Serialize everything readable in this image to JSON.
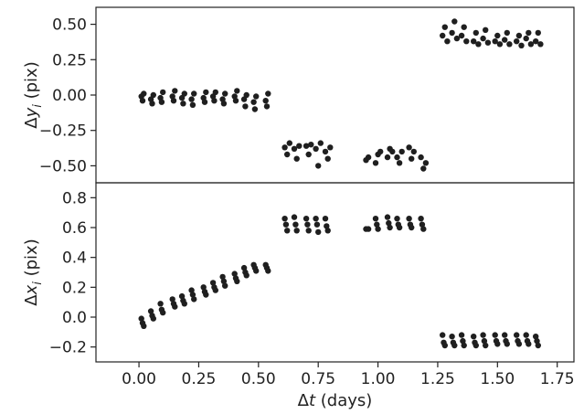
{
  "chart_data": [
    {
      "type": "scatter",
      "panel": "top",
      "ylabel": "Δy_i (pix)",
      "ylabel_parts": {
        "base": "Δ",
        "var": "y",
        "sub": "i",
        "unit": "(pix)"
      },
      "xlabel": "",
      "ylim": [
        -0.62,
        0.62
      ],
      "xlim": [
        -0.18,
        1.82
      ],
      "yticks": [
        0.5,
        0.25,
        0.0,
        -0.25,
        -0.5
      ],
      "ytick_labels": [
        "0.50",
        "0.25",
        "0.00",
        "−0.25",
        "−0.50"
      ],
      "grid": false,
      "marker_color": "#1f1f1f",
      "series": [
        {
          "x": [
            0.01,
            0.015,
            0.02,
            0.05,
            0.055,
            0.06,
            0.09,
            0.095,
            0.1,
            0.14,
            0.145,
            0.15,
            0.18,
            0.185,
            0.19,
            0.22,
            0.225,
            0.23,
            0.27,
            0.275,
            0.28,
            0.31,
            0.315,
            0.32,
            0.35,
            0.355,
            0.36,
            0.4,
            0.405,
            0.41,
            0.44,
            0.445,
            0.45,
            0.48,
            0.485,
            0.49,
            0.53,
            0.535,
            0.54,
            0.61,
            0.62,
            0.63,
            0.65,
            0.66,
            0.67,
            0.7,
            0.71,
            0.72,
            0.74,
            0.75,
            0.76,
            0.78,
            0.79,
            0.8,
            0.95,
            0.96,
            0.99,
            1.0,
            1.01,
            1.04,
            1.05,
            1.06,
            1.08,
            1.09,
            1.1,
            1.13,
            1.14,
            1.15,
            1.18,
            1.19,
            1.2,
            1.27,
            1.28,
            1.29,
            1.31,
            1.32,
            1.33,
            1.35,
            1.36,
            1.37,
            1.4,
            1.41,
            1.42,
            1.44,
            1.45,
            1.46,
            1.49,
            1.5,
            1.51,
            1.53,
            1.54,
            1.55,
            1.58,
            1.59,
            1.6,
            1.62,
            1.63,
            1.64,
            1.66,
            1.67,
            1.68
          ],
          "y": [
            -0.01,
            -0.04,
            0.01,
            -0.03,
            -0.06,
            0.0,
            -0.02,
            -0.05,
            0.02,
            -0.01,
            -0.04,
            0.03,
            -0.02,
            -0.06,
            0.01,
            -0.03,
            -0.07,
            0.01,
            -0.02,
            -0.05,
            0.02,
            -0.01,
            -0.04,
            0.02,
            -0.03,
            -0.06,
            0.01,
            -0.01,
            -0.04,
            0.03,
            -0.03,
            -0.08,
            0.0,
            -0.05,
            -0.1,
            -0.01,
            -0.04,
            -0.08,
            0.01,
            -0.37,
            -0.42,
            -0.34,
            -0.38,
            -0.45,
            -0.36,
            -0.36,
            -0.42,
            -0.35,
            -0.38,
            -0.5,
            -0.34,
            -0.4,
            -0.45,
            -0.37,
            -0.46,
            -0.44,
            -0.48,
            -0.42,
            -0.4,
            -0.44,
            -0.38,
            -0.4,
            -0.44,
            -0.48,
            -0.4,
            -0.37,
            -0.45,
            -0.4,
            -0.44,
            -0.52,
            -0.48,
            0.42,
            0.48,
            0.38,
            0.44,
            0.52,
            0.4,
            0.42,
            0.48,
            0.38,
            0.38,
            0.44,
            0.36,
            0.4,
            0.46,
            0.37,
            0.38,
            0.42,
            0.36,
            0.39,
            0.44,
            0.36,
            0.38,
            0.42,
            0.35,
            0.4,
            0.44,
            0.36,
            0.38,
            0.44,
            0.36
          ]
        }
      ]
    },
    {
      "type": "scatter",
      "panel": "bottom",
      "ylabel": "Δx_i (pix)",
      "ylabel_parts": {
        "base": "Δ",
        "var": "x",
        "sub": "i",
        "unit": "(pix)"
      },
      "xlabel": "Δt (days)",
      "xlabel_parts": {
        "base": "Δ",
        "var": "t",
        "unit": "(days)"
      },
      "ylim": [
        -0.3,
        0.9
      ],
      "xlim": [
        -0.18,
        1.82
      ],
      "yticks": [
        0.8,
        0.6,
        0.4,
        0.2,
        0.0,
        -0.2
      ],
      "ytick_labels": [
        "0.8",
        "0.6",
        "0.4",
        "0.2",
        "0.0",
        "−0.2"
      ],
      "xticks": [
        0.0,
        0.25,
        0.5,
        0.75,
        1.0,
        1.25,
        1.5,
        1.75
      ],
      "xtick_labels": [
        "0.00",
        "0.25",
        "0.50",
        "0.75",
        "1.00",
        "1.25",
        "1.50",
        "1.75"
      ],
      "grid": false,
      "marker_color": "#1f1f1f",
      "series": [
        {
          "x": [
            0.01,
            0.015,
            0.02,
            0.05,
            0.055,
            0.06,
            0.09,
            0.095,
            0.1,
            0.14,
            0.145,
            0.15,
            0.18,
            0.185,
            0.19,
            0.22,
            0.225,
            0.23,
            0.27,
            0.275,
            0.28,
            0.31,
            0.315,
            0.32,
            0.35,
            0.355,
            0.36,
            0.4,
            0.405,
            0.41,
            0.44,
            0.445,
            0.45,
            0.48,
            0.485,
            0.49,
            0.53,
            0.535,
            0.54,
            0.61,
            0.615,
            0.62,
            0.65,
            0.655,
            0.66,
            0.7,
            0.705,
            0.71,
            0.74,
            0.745,
            0.75,
            0.78,
            0.785,
            0.79,
            0.95,
            0.96,
            0.99,
            0.995,
            1.0,
            1.04,
            1.045,
            1.05,
            1.08,
            1.085,
            1.09,
            1.13,
            1.135,
            1.14,
            1.18,
            1.185,
            1.19,
            1.27,
            1.275,
            1.28,
            1.31,
            1.315,
            1.32,
            1.35,
            1.355,
            1.36,
            1.4,
            1.405,
            1.41,
            1.44,
            1.445,
            1.45,
            1.49,
            1.495,
            1.5,
            1.53,
            1.535,
            1.54,
            1.58,
            1.585,
            1.59,
            1.62,
            1.625,
            1.63,
            1.66,
            1.665,
            1.67
          ],
          "y": [
            -0.01,
            -0.04,
            -0.06,
            0.04,
            0.01,
            -0.01,
            0.09,
            0.05,
            0.03,
            0.12,
            0.09,
            0.07,
            0.14,
            0.11,
            0.09,
            0.18,
            0.15,
            0.12,
            0.2,
            0.17,
            0.15,
            0.23,
            0.2,
            0.18,
            0.27,
            0.24,
            0.21,
            0.29,
            0.26,
            0.24,
            0.33,
            0.3,
            0.28,
            0.35,
            0.33,
            0.31,
            0.35,
            0.33,
            0.31,
            0.66,
            0.62,
            0.58,
            0.67,
            0.62,
            0.58,
            0.66,
            0.62,
            0.58,
            0.66,
            0.62,
            0.57,
            0.66,
            0.61,
            0.58,
            0.59,
            0.59,
            0.66,
            0.62,
            0.59,
            0.67,
            0.63,
            0.6,
            0.66,
            0.62,
            0.6,
            0.66,
            0.62,
            0.6,
            0.66,
            0.62,
            0.59,
            -0.12,
            -0.17,
            -0.19,
            -0.13,
            -0.17,
            -0.19,
            -0.12,
            -0.16,
            -0.19,
            -0.13,
            -0.17,
            -0.19,
            -0.12,
            -0.16,
            -0.19,
            -0.12,
            -0.16,
            -0.18,
            -0.12,
            -0.16,
            -0.18,
            -0.12,
            -0.16,
            -0.18,
            -0.12,
            -0.16,
            -0.18,
            -0.13,
            -0.16,
            -0.19
          ]
        }
      ]
    }
  ]
}
